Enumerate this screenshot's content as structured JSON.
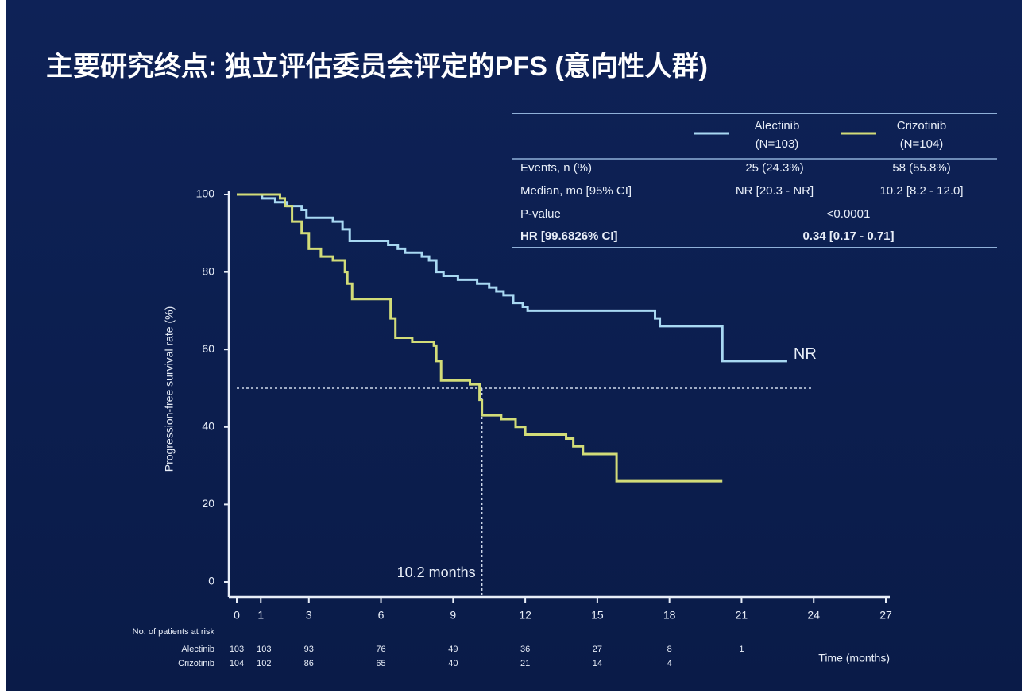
{
  "title": "主要研究终点: 独立评估委员会评定的PFS (意向性人群)",
  "summary_table": {
    "rows": [
      [
        "Events, n (%)",
        "25 (24.3%)",
        "58 (55.8%)"
      ],
      [
        "Median, mo [95% CI]",
        "NR [20.3 - NR]",
        "10.2 [8.2 - 12.0]"
      ],
      [
        "P-value",
        "<0.0001"
      ],
      [
        "HR [99.6826% CI]",
        "0.34 [0.17 - 0.71]"
      ]
    ]
  },
  "chart_data": {
    "type": "line",
    "step": true,
    "ylabel": "Progression-free survival rate (%)",
    "xlabel": "Time (months)",
    "xlim": [
      0,
      27
    ],
    "xticks": [
      0,
      1,
      3,
      6,
      9,
      12,
      15,
      18,
      21,
      24,
      27
    ],
    "ylim": [
      0,
      100
    ],
    "yticks": [
      0,
      20,
      40,
      60,
      80,
      100
    ],
    "series": [
      {
        "name": "Alectinib",
        "n_label": "(N=103)",
        "color": "#a8d8f2",
        "end_label": "NR",
        "x": [
          0,
          1.05,
          1.05,
          1.6,
          1.6,
          2.1,
          2.1,
          2.7,
          2.7,
          2.9,
          2.9,
          4.0,
          4.0,
          4.4,
          4.4,
          4.7,
          4.7,
          6.3,
          6.3,
          6.7,
          6.7,
          7.0,
          7.0,
          7.7,
          7.7,
          8.0,
          8.0,
          8.3,
          8.3,
          8.6,
          8.6,
          9.2,
          9.2,
          10.0,
          10.0,
          10.5,
          10.5,
          10.8,
          10.8,
          11.1,
          11.1,
          11.5,
          11.5,
          11.9,
          11.9,
          12.1,
          12.1,
          17.4,
          17.4,
          17.6,
          17.6,
          20.2,
          20.2,
          22.9
        ],
        "values": [
          100,
          100,
          99,
          99,
          98,
          98,
          97,
          97,
          96,
          96,
          94,
          94,
          93,
          93,
          91,
          91,
          88,
          88,
          87,
          87,
          86,
          86,
          85,
          85,
          84,
          84,
          83,
          83,
          80,
          80,
          79,
          79,
          78,
          78,
          77,
          77,
          76,
          76,
          75,
          75,
          74,
          74,
          72,
          72,
          71,
          71,
          70,
          70,
          68,
          68,
          66,
          66,
          57,
          57
        ]
      },
      {
        "name": "Crizotinib",
        "n_label": "(N=104)",
        "color": "#d2dc78",
        "x": [
          0,
          1.8,
          1.8,
          2.0,
          2.0,
          2.3,
          2.3,
          2.7,
          2.7,
          3.0,
          3.0,
          3.5,
          3.5,
          4.0,
          4.0,
          4.5,
          4.5,
          4.6,
          4.6,
          4.8,
          4.8,
          6.4,
          6.4,
          6.6,
          6.6,
          7.3,
          7.3,
          8.2,
          8.2,
          8.3,
          8.3,
          8.5,
          8.5,
          9.7,
          9.7,
          10.1,
          10.1,
          10.2,
          10.2,
          11.0,
          11.0,
          11.6,
          11.6,
          12.0,
          12.0,
          13.7,
          13.7,
          14.0,
          14.0,
          14.4,
          14.4,
          15.8,
          15.8,
          20.2
        ],
        "values": [
          100,
          100,
          99,
          99,
          97,
          97,
          93,
          93,
          90,
          90,
          86,
          86,
          84,
          84,
          83,
          83,
          80,
          80,
          77,
          77,
          73,
          73,
          68,
          68,
          63,
          63,
          62,
          62,
          61,
          61,
          57,
          57,
          52,
          52,
          51,
          51,
          47,
          47,
          43,
          43,
          42,
          42,
          40,
          40,
          38,
          38,
          37,
          37,
          35,
          35,
          33,
          33,
          26,
          26
        ]
      }
    ],
    "median_line": {
      "y": 50,
      "x_end": 24
    },
    "median_marker": {
      "x": 10.2,
      "label": "10.2 months"
    },
    "at_risk": {
      "title": "No. of patients at risk",
      "rows": [
        {
          "name": "Alectinib",
          "values": [
            103,
            103,
            93,
            76,
            49,
            36,
            27,
            8,
            1
          ]
        },
        {
          "name": "Crizotinib",
          "values": [
            104,
            102,
            86,
            65,
            40,
            21,
            14,
            4,
            null
          ]
        }
      ]
    }
  }
}
